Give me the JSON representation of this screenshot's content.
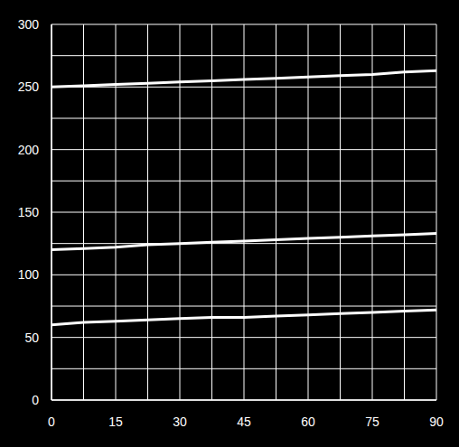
{
  "chart_data": {
    "type": "line",
    "x": [
      0,
      7.5,
      15,
      22.5,
      30,
      37.5,
      45,
      52.5,
      60,
      67.5,
      75,
      82.5,
      90
    ],
    "series": [
      {
        "color": "#ffffff",
        "values": [
          250,
          251,
          252,
          253,
          254,
          255,
          256,
          257,
          258,
          259,
          260,
          262,
          263
        ]
      },
      {
        "color": "#ffffff",
        "values": [
          120,
          121,
          122,
          124,
          125,
          126,
          127,
          128,
          129,
          130,
          131,
          132,
          133
        ]
      },
      {
        "color": "#ffffff",
        "values": [
          60,
          62,
          63,
          64,
          65,
          66,
          66,
          67,
          68,
          69,
          70,
          71,
          72
        ]
      }
    ],
    "xlim": [
      0,
      90
    ],
    "xticks": [
      0,
      15,
      30,
      45,
      60,
      75,
      90
    ],
    "ylim": [
      0,
      300
    ],
    "yticks": [
      0,
      50,
      100,
      150,
      200,
      250,
      300
    ],
    "grid": true
  }
}
